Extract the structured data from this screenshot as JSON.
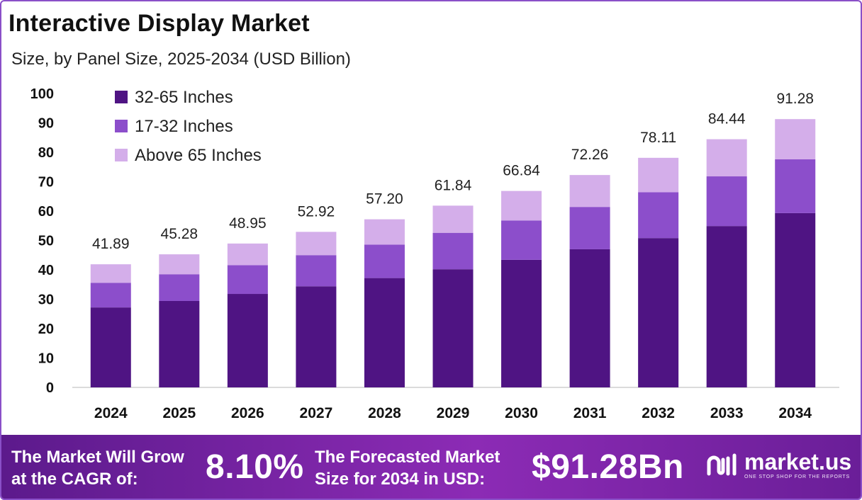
{
  "header": {
    "title": "Interactive Display Market",
    "subtitle": "Size, by Panel Size, 2025-2034 (USD Billion)"
  },
  "chart_data": {
    "type": "bar",
    "stacked": true,
    "categories": [
      "2024",
      "2025",
      "2026",
      "2027",
      "2028",
      "2029",
      "2030",
      "2031",
      "2032",
      "2033",
      "2034"
    ],
    "series": [
      {
        "name": "32-65 Inches",
        "color": "#4f1483",
        "values": [
          27.2,
          29.4,
          31.8,
          34.4,
          37.2,
          40.2,
          43.4,
          47.0,
          50.8,
          54.9,
          59.3
        ]
      },
      {
        "name": "17-32 Inches",
        "color": "#8c4ecb",
        "values": [
          8.4,
          9.1,
          9.8,
          10.6,
          11.4,
          12.4,
          13.4,
          14.4,
          15.6,
          16.9,
          18.3
        ]
      },
      {
        "name": "Above 65 Inches",
        "color": "#d4aeea",
        "values": [
          6.29,
          6.78,
          7.35,
          7.92,
          8.6,
          9.24,
          10.04,
          10.86,
          11.71,
          12.64,
          13.68
        ]
      }
    ],
    "totals": [
      "41.89",
      "45.28",
      "48.95",
      "52.92",
      "57.20",
      "61.84",
      "66.84",
      "72.26",
      "78.11",
      "84.44",
      "91.28"
    ],
    "ylim": [
      0,
      100
    ],
    "yticks": [
      "0",
      "10",
      "20",
      "30",
      "40",
      "50",
      "60",
      "70",
      "80",
      "90",
      "100"
    ],
    "legend_position": "top-left",
    "grid": false
  },
  "footer": {
    "cagr_label_line1": "The Market Will Grow",
    "cagr_label_line2": "at the CAGR of:",
    "cagr_value": "8.10%",
    "forecast_label_line1": "The Forecasted Market",
    "forecast_label_line2": "Size for 2034 in USD:",
    "forecast_value": "$91.28Bn",
    "brand_name": "market.us",
    "brand_tagline": "ONE STOP SHOP FOR THE REPORTS",
    "brand_icon": "market-us-logo-icon"
  }
}
